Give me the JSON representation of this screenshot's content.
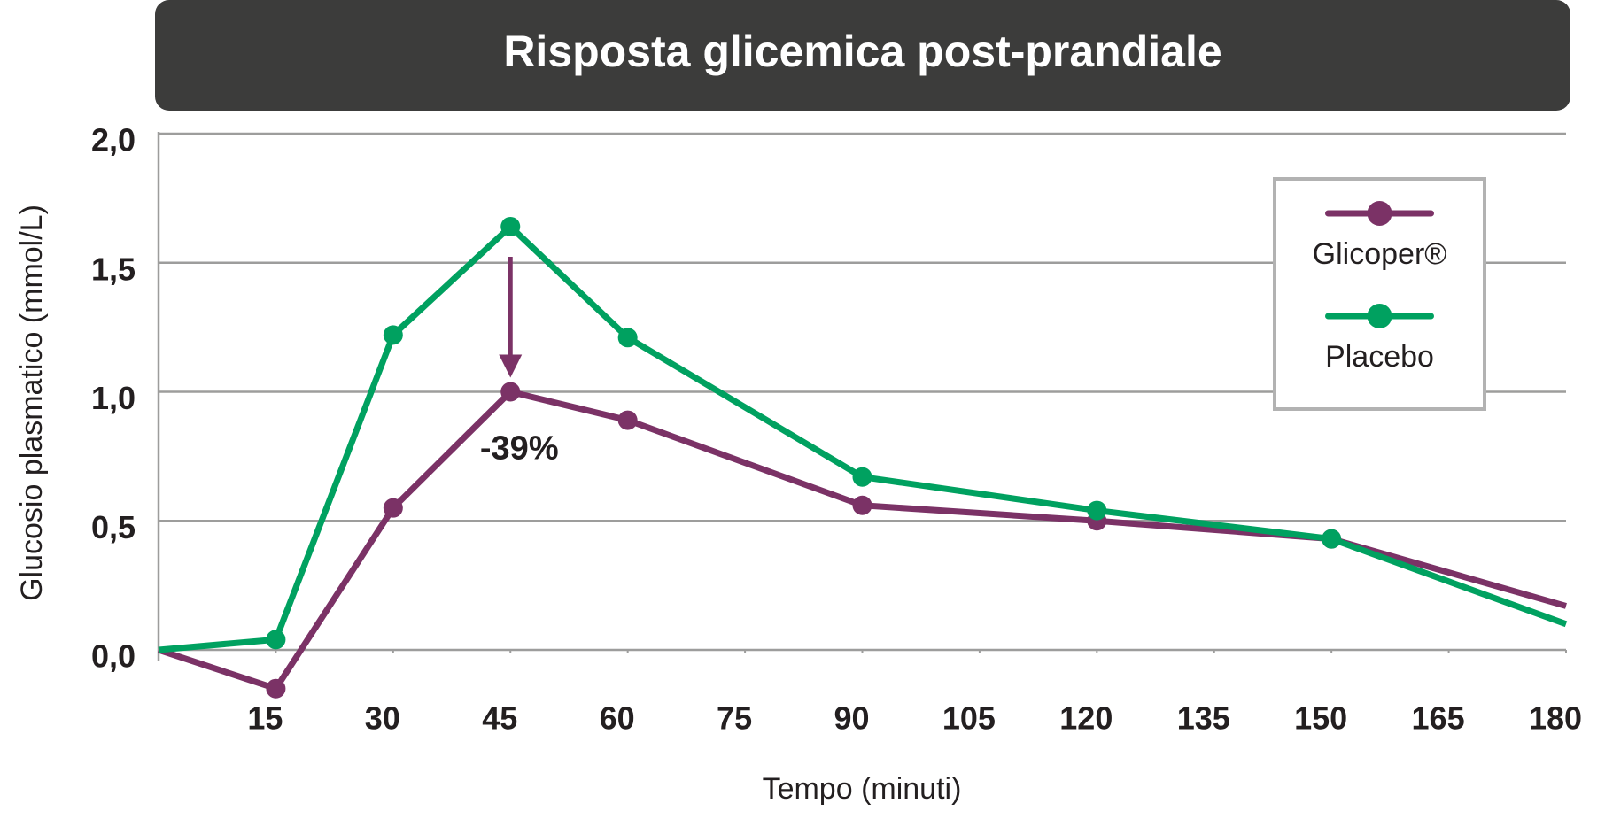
{
  "chart_data": {
    "type": "line",
    "title": "Risposta glicemica post-prandiale",
    "x_label": "Tempo (minuti)",
    "y_label": "Glucosio plasmatico (mmol/L)",
    "x": [
      0,
      15,
      30,
      45,
      60,
      90,
      120,
      150,
      180
    ],
    "series": [
      {
        "name": "Glicoper®",
        "color": "#7b3266",
        "values": [
          0,
          -0.15,
          0.55,
          1.0,
          0.89,
          0.56,
          0.5,
          0.43,
          0.17
        ]
      },
      {
        "name": "Placebo",
        "color": "#00a160",
        "values": [
          0,
          0.04,
          1.22,
          1.64,
          1.21,
          0.67,
          0.54,
          0.43,
          0.1
        ]
      }
    ],
    "xlim": [
      0,
      180
    ],
    "xticks": [
      15,
      30,
      45,
      60,
      75,
      90,
      105,
      120,
      135,
      150,
      165,
      180
    ],
    "ylim": [
      0,
      2.0
    ],
    "yticks": [
      {
        "value": 0,
        "label": "0,0"
      },
      {
        "value": 0.5,
        "label": "0,5"
      },
      {
        "value": 1.0,
        "label": "1,0"
      },
      {
        "value": 1.5,
        "label": "1,5"
      },
      {
        "value": 2.0,
        "label": "2,0"
      }
    ],
    "grid": true,
    "legend": "upper right",
    "annotation": {
      "text": "-39%",
      "x": 45
    }
  }
}
